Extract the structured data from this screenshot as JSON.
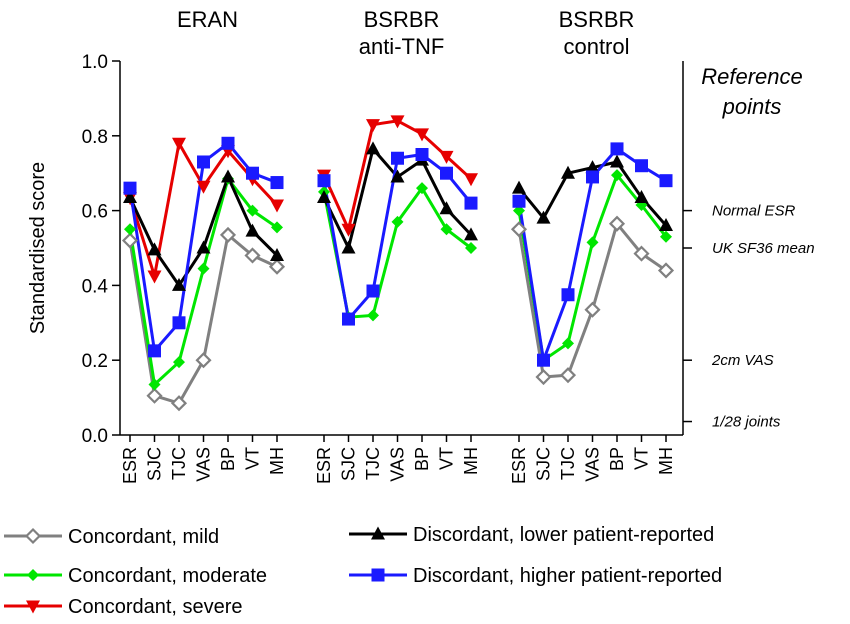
{
  "chart_data": {
    "type": "line",
    "ylabel": "Standardised score",
    "ylim": [
      0.0,
      1.0
    ],
    "yticks": [
      "0.0",
      "0.2",
      "0.4",
      "0.6",
      "0.8",
      "1.0"
    ],
    "categories": [
      "ESR",
      "SJC",
      "TJC",
      "VAS",
      "BP",
      "VT",
      "MH"
    ],
    "panels": [
      {
        "title_lines": [
          "ERAN"
        ],
        "series": [
          {
            "key": "mild",
            "values": [
              0.52,
              0.105,
              0.085,
              0.2,
              0.535,
              0.48,
              0.45
            ]
          },
          {
            "key": "moderate",
            "values": [
              0.55,
              0.135,
              0.195,
              0.445,
              0.685,
              0.6,
              0.555
            ]
          },
          {
            "key": "severe",
            "values": [
              0.635,
              0.425,
              0.78,
              0.665,
              0.76,
              0.685,
              0.615
            ]
          },
          {
            "key": "lower",
            "values": [
              0.635,
              0.495,
              0.4,
              0.5,
              0.69,
              0.545,
              0.48
            ]
          },
          {
            "key": "higher",
            "values": [
              0.66,
              0.225,
              0.3,
              0.73,
              0.78,
              0.7,
              0.675
            ]
          }
        ]
      },
      {
        "title_lines": [
          "BSRBR",
          "anti-TNF"
        ],
        "series": [
          {
            "key": "moderate",
            "values": [
              0.65,
              0.315,
              0.32,
              0.57,
              0.66,
              0.55,
              0.5
            ]
          },
          {
            "key": "severe",
            "values": [
              0.695,
              0.55,
              0.83,
              0.84,
              0.805,
              0.745,
              0.685
            ]
          },
          {
            "key": "lower",
            "values": [
              0.635,
              0.5,
              0.765,
              0.69,
              0.735,
              0.605,
              0.535
            ]
          },
          {
            "key": "higher",
            "values": [
              0.68,
              0.31,
              0.385,
              0.74,
              0.75,
              0.7,
              0.62
            ]
          }
        ]
      },
      {
        "title_lines": [
          "BSRBR",
          "control"
        ],
        "series": [
          {
            "key": "mild",
            "values": [
              0.55,
              0.155,
              0.16,
              0.335,
              0.565,
              0.485,
              0.44
            ]
          },
          {
            "key": "moderate",
            "values": [
              0.6,
              0.2,
              0.245,
              0.515,
              0.695,
              0.615,
              0.53
            ]
          },
          {
            "key": "lower",
            "values": [
              0.66,
              0.58,
              0.7,
              0.715,
              0.73,
              0.635,
              0.56
            ]
          },
          {
            "key": "higher",
            "values": [
              0.625,
              0.2,
              0.375,
              0.69,
              0.765,
              0.72,
              0.68
            ]
          }
        ]
      }
    ],
    "series_styles": {
      "mild": {
        "name": "Concordant, mild",
        "color": "#808080",
        "marker": "diamond-open"
      },
      "moderate": {
        "name": "Concordant, moderate",
        "color": "#00e600",
        "marker": "diamond"
      },
      "severe": {
        "name": "Concordant, severe",
        "color": "#e60000",
        "marker": "triangle-down"
      },
      "lower": {
        "name": "Discordant, lower patient-reported",
        "color": "#000000",
        "marker": "triangle-up"
      },
      "higher": {
        "name": "Discordant, higher patient-reported",
        "color": "#1a1aff",
        "marker": "square"
      }
    },
    "legend_order": [
      "mild",
      "moderate",
      "severe",
      "lower",
      "higher"
    ],
    "legend_placement": "bottom",
    "grid": false,
    "reference_points": {
      "title_lines": [
        "Reference",
        "points"
      ],
      "items": [
        {
          "label": "Normal ESR",
          "value": 0.6
        },
        {
          "label": "UK SF36 mean",
          "value": 0.5
        },
        {
          "label": "2cm VAS",
          "value": 0.2
        },
        {
          "label": "1/28 joints",
          "value": 0.036
        }
      ]
    }
  }
}
